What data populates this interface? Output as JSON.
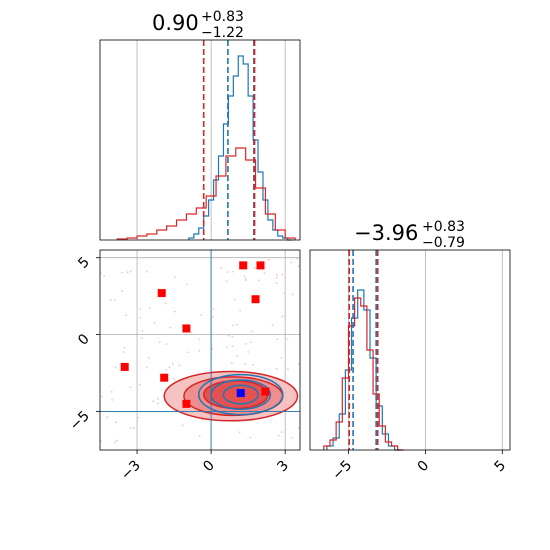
{
  "chart_data": [
    {
      "type": "histogram",
      "panel": "top-left",
      "title": {
        "value": "0.90",
        "upper": "+0.83",
        "lower": "−1.22"
      },
      "xlim": [
        -4.5,
        3.6
      ],
      "grid": true,
      "quantile_lines": [
        {
          "x": -0.3,
          "color": "#d62728"
        },
        {
          "x": 0.68,
          "color": "#1f77b4"
        },
        {
          "x": 1.73,
          "color": "#1f77b4"
        },
        {
          "x": 1.76,
          "color": "#d62728"
        }
      ],
      "series": [
        {
          "color": "#1f77b4",
          "x": [
            -0.8,
            -0.6,
            -0.4,
            -0.2,
            0.0,
            0.2,
            0.4,
            0.6,
            0.8,
            1.0,
            1.2,
            1.4,
            1.6,
            1.8,
            2.0,
            2.2,
            2.4,
            2.6,
            2.8,
            3.0,
            3.2
          ],
          "y": [
            0.01,
            0.03,
            0.06,
            0.12,
            0.2,
            0.3,
            0.42,
            0.58,
            0.72,
            0.82,
            0.92,
            0.88,
            0.72,
            0.5,
            0.34,
            0.2,
            0.1,
            0.05,
            0.02,
            0.01,
            0.0
          ]
        },
        {
          "color": "#d62728",
          "x": [
            -3.6,
            -3.2,
            -2.8,
            -2.4,
            -2.0,
            -1.6,
            -1.2,
            -0.8,
            -0.4,
            0.0,
            0.4,
            0.8,
            1.2,
            1.6,
            2.0,
            2.4,
            2.8,
            3.2
          ],
          "y": [
            0.005,
            0.01,
            0.02,
            0.03,
            0.05,
            0.07,
            0.1,
            0.13,
            0.16,
            0.22,
            0.32,
            0.42,
            0.46,
            0.4,
            0.26,
            0.13,
            0.05,
            0.01
          ]
        }
      ]
    },
    {
      "type": "contour-scatter",
      "panel": "bottom-left",
      "xlim": [
        -4.5,
        3.6
      ],
      "ylim": [
        -7.5,
        5.5
      ],
      "grid": true,
      "xticks": [
        "−3",
        "0",
        "3"
      ],
      "yticks": [
        "5",
        "0",
        "−5"
      ],
      "truth_lines": {
        "x": 0.0,
        "y": -5.0,
        "color": "#1f77b4"
      },
      "points": [
        {
          "x": -2.0,
          "y": 2.7,
          "color": "#ff0000"
        },
        {
          "x": 1.3,
          "y": 4.5,
          "color": "#ff0000"
        },
        {
          "x": 2.0,
          "y": 4.5,
          "color": "#ff0000"
        },
        {
          "x": 1.8,
          "y": 2.3,
          "color": "#ff0000"
        },
        {
          "x": -1.0,
          "y": 0.4,
          "color": "#ff0000"
        },
        {
          "x": -3.5,
          "y": -2.1,
          "color": "#ff0000"
        },
        {
          "x": -1.9,
          "y": -2.8,
          "color": "#ff0000"
        },
        {
          "x": -1.0,
          "y": -4.5,
          "color": "#ff0000"
        },
        {
          "x": 2.2,
          "y": -3.7,
          "color": "#ff0000"
        },
        {
          "x": 1.2,
          "y": -3.8,
          "color": "#0000ff"
        }
      ],
      "contours": [
        {
          "series": "red",
          "cx": 0.8,
          "cy": -4.0,
          "rx": 2.7,
          "ry": 1.6,
          "color": "#d62728",
          "fill": "#f5bcbc"
        },
        {
          "series": "red",
          "cx": 0.9,
          "cy": -4.0,
          "rx": 2.0,
          "ry": 1.25,
          "color": "#d62728",
          "fill": "#ee8888"
        },
        {
          "series": "red",
          "cx": 1.0,
          "cy": -3.9,
          "rx": 1.3,
          "ry": 0.9,
          "color": "#d62728",
          "fill": "#e24a4a"
        },
        {
          "series": "blue",
          "cx": 1.2,
          "cy": -3.9,
          "rx": 1.7,
          "ry": 1.3,
          "color": "#1f77b4",
          "fill": "none"
        },
        {
          "series": "blue",
          "cx": 1.2,
          "cy": -3.9,
          "rx": 1.2,
          "ry": 0.95,
          "color": "#1f77b4",
          "fill": "none"
        },
        {
          "series": "blue",
          "cx": 1.2,
          "cy": -3.9,
          "rx": 0.7,
          "ry": 0.6,
          "color": "#1f77b4",
          "fill": "none"
        }
      ]
    },
    {
      "type": "histogram",
      "panel": "bottom-right",
      "title": {
        "value": "−3.96",
        "upper": "+0.83",
        "lower": "−0.79"
      },
      "xlim": [
        -7.5,
        5.5
      ],
      "grid": true,
      "xticks": [
        "−5",
        "0",
        "5"
      ],
      "quantile_lines": [
        {
          "x": -4.95,
          "color": "#d62728"
        },
        {
          "x": -4.7,
          "color": "#1f77b4"
        },
        {
          "x": -3.2,
          "color": "#1f77b4"
        },
        {
          "x": -3.1,
          "color": "#d62728"
        }
      ],
      "series": [
        {
          "color": "#1f77b4",
          "x": [
            -6.2,
            -5.8,
            -5.4,
            -5.0,
            -4.6,
            -4.2,
            -3.8,
            -3.4,
            -3.0,
            -2.6,
            -2.2,
            -1.8
          ],
          "y": [
            0.02,
            0.06,
            0.18,
            0.4,
            0.66,
            0.8,
            0.7,
            0.46,
            0.22,
            0.08,
            0.02,
            0.0
          ]
        },
        {
          "color": "#d62728",
          "x": [
            -6.4,
            -6.0,
            -5.6,
            -5.2,
            -4.8,
            -4.4,
            -4.0,
            -3.6,
            -3.2,
            -2.8,
            -2.4,
            -2.0,
            -1.6
          ],
          "y": [
            0.02,
            0.05,
            0.14,
            0.36,
            0.62,
            0.76,
            0.72,
            0.5,
            0.28,
            0.12,
            0.04,
            0.02,
            0.0
          ]
        }
      ]
    }
  ]
}
